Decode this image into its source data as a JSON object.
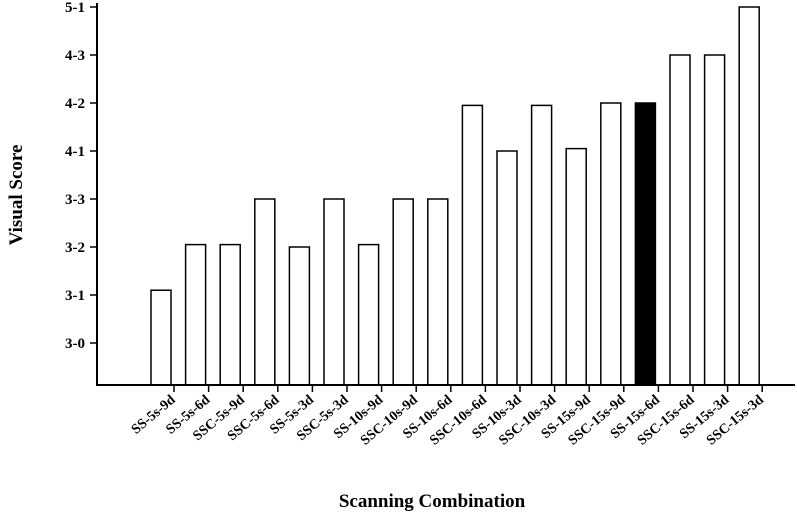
{
  "chart_data": {
    "type": "bar",
    "xlabel": "Scanning Combination",
    "ylabel": "Visual Score",
    "y_ticks": [
      "3-0",
      "3-1",
      "3-2",
      "3-3",
      "4-1",
      "4-2",
      "4-3",
      "5-1"
    ],
    "categories": [
      "SS-5s-9d",
      "SS-5s-6d",
      "SSC-5s-9d",
      "SSC-5s-6d",
      "SS-5s-3d",
      "SSC-5s-3d",
      "SS-10s-9d",
      "SSC-10s-9d",
      "SS-10s-6d",
      "SSC-10s-6d",
      "SS-10s-3d",
      "SSC-10s-3d",
      "SS-15s-9d",
      "SSC-15s-9d",
      "SS-15s-6d",
      "SSC-15s-6d",
      "SS-15s-3d",
      "SSC-15s-3d"
    ],
    "values": [
      1.1,
      2.05,
      2.05,
      3.0,
      2.0,
      3.0,
      2.05,
      3.0,
      3.0,
      4.95,
      4.0,
      4.95,
      4.05,
      5.0,
      5.0,
      6.0,
      6.0,
      7.0
    ],
    "highlighted": [
      "SS-15s-6d"
    ],
    "bar_fill": "#ffffff",
    "highlight_fill": "#000000",
    "grid": false,
    "legend": "none"
  }
}
